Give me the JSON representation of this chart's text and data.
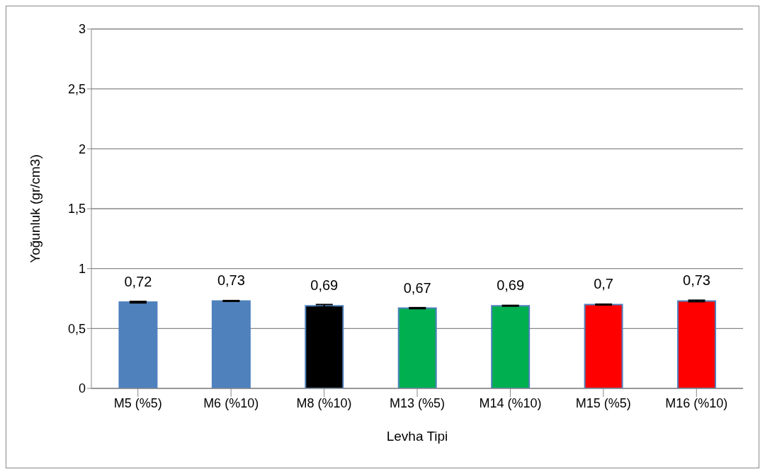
{
  "chart_data": {
    "type": "bar",
    "xlabel": "Levha Tipi",
    "ylabel": "Yoğunluk (gr/cm3)",
    "categories": [
      "M5 (%5)",
      "M6 (%10)",
      "M8 (%10)",
      "M13 (%5)",
      "M14 (%10)",
      "M15 (%5)",
      "M16 (%10)"
    ],
    "values": [
      0.72,
      0.73,
      0.69,
      0.67,
      0.69,
      0.7,
      0.73
    ],
    "value_labels": [
      "0,72",
      "0,73",
      "0,69",
      "0,67",
      "0,69",
      "0,7",
      "0,73"
    ],
    "errors": [
      0.006,
      0.003,
      0.01,
      0.004,
      0.003,
      0.003,
      0.006
    ],
    "colors": [
      "#4f81bd",
      "#4f81bd",
      "#000000",
      "#00b050",
      "#00b050",
      "#ff0000",
      "#ff0000"
    ],
    "ylim": [
      0,
      3
    ],
    "yticks": [
      0,
      {
        "value": 0.5,
        "label": "0,5"
      },
      1,
      {
        "value": 1.5,
        "label": "1,5"
      },
      2,
      {
        "value": 2.5,
        "label": "2,5"
      },
      3
    ],
    "grid": "y",
    "legend": false
  }
}
